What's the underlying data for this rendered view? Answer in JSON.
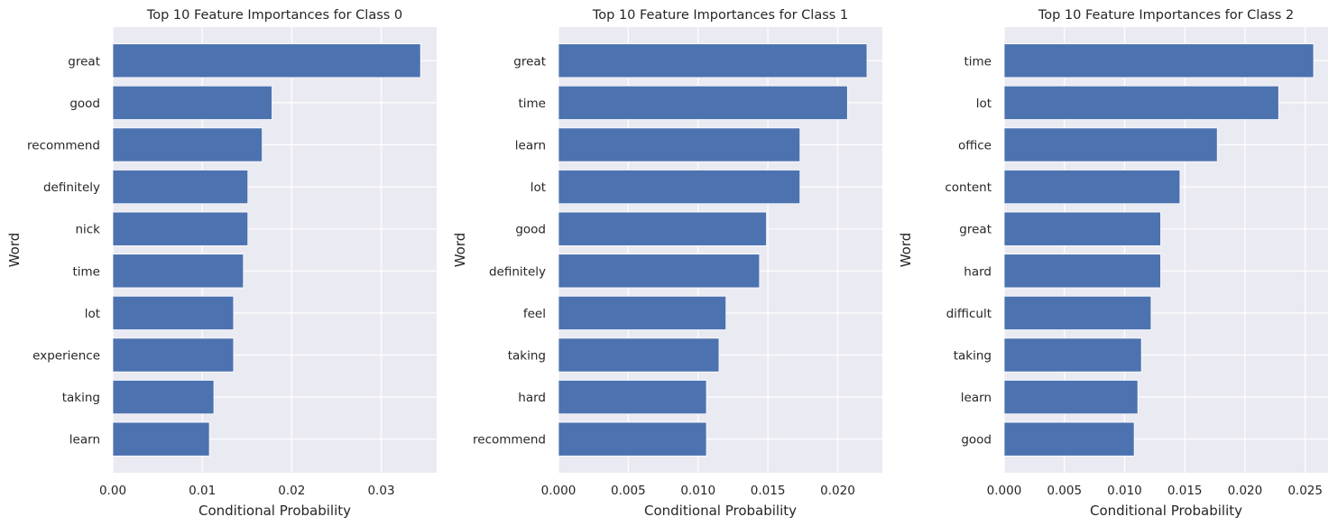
{
  "chart_data": [
    {
      "type": "bar",
      "orientation": "horizontal",
      "title": "Top 10 Feature Importances for Class 0",
      "xlabel": "Conditional Probability",
      "ylabel": "Word",
      "categories": [
        "great",
        "good",
        "recommend",
        "definitely",
        "nick",
        "time",
        "lot",
        "experience",
        "taking",
        "learn"
      ],
      "values": [
        0.0344,
        0.0178,
        0.0167,
        0.0151,
        0.0151,
        0.0146,
        0.0135,
        0.0135,
        0.0113,
        0.0108
      ],
      "xlim": [
        0,
        0.0362
      ],
      "xticks": [
        0,
        0.01,
        0.02,
        0.03
      ],
      "xtick_labels": [
        "0.00",
        "0.01",
        "0.02",
        "0.03"
      ],
      "grid": true,
      "color": "#4c72b0",
      "background": "#eaeaf2"
    },
    {
      "type": "bar",
      "orientation": "horizontal",
      "title": "Top 10 Feature Importances for Class 1",
      "xlabel": "Conditional Probability",
      "ylabel": "Word",
      "categories": [
        "great",
        "time",
        "learn",
        "lot",
        "good",
        "definitely",
        "feel",
        "taking",
        "hard",
        "recommend"
      ],
      "values": [
        0.0221,
        0.0207,
        0.0173,
        0.0173,
        0.0149,
        0.0144,
        0.012,
        0.0115,
        0.0106,
        0.0106
      ],
      "xlim": [
        0,
        0.0232
      ],
      "xticks": [
        0,
        0.005,
        0.01,
        0.015,
        0.02
      ],
      "xtick_labels": [
        "0.000",
        "0.005",
        "0.010",
        "0.015",
        "0.020"
      ],
      "grid": true,
      "color": "#4c72b0",
      "background": "#eaeaf2"
    },
    {
      "type": "bar",
      "orientation": "horizontal",
      "title": "Top 10 Feature Importances for Class 2",
      "xlabel": "Conditional Probability",
      "ylabel": "Word",
      "categories": [
        "time",
        "lot",
        "office",
        "content",
        "great",
        "hard",
        "difficult",
        "taking",
        "learn",
        "good"
      ],
      "values": [
        0.0257,
        0.0228,
        0.0177,
        0.0146,
        0.013,
        0.013,
        0.0122,
        0.0114,
        0.0111,
        0.0108
      ],
      "xlim": [
        0,
        0.0269
      ],
      "xticks": [
        0,
        0.005,
        0.01,
        0.015,
        0.02,
        0.025
      ],
      "xtick_labels": [
        "0.000",
        "0.005",
        "0.010",
        "0.015",
        "0.020",
        "0.025"
      ],
      "grid": true,
      "color": "#4c72b0",
      "background": "#eaeaf2"
    }
  ]
}
